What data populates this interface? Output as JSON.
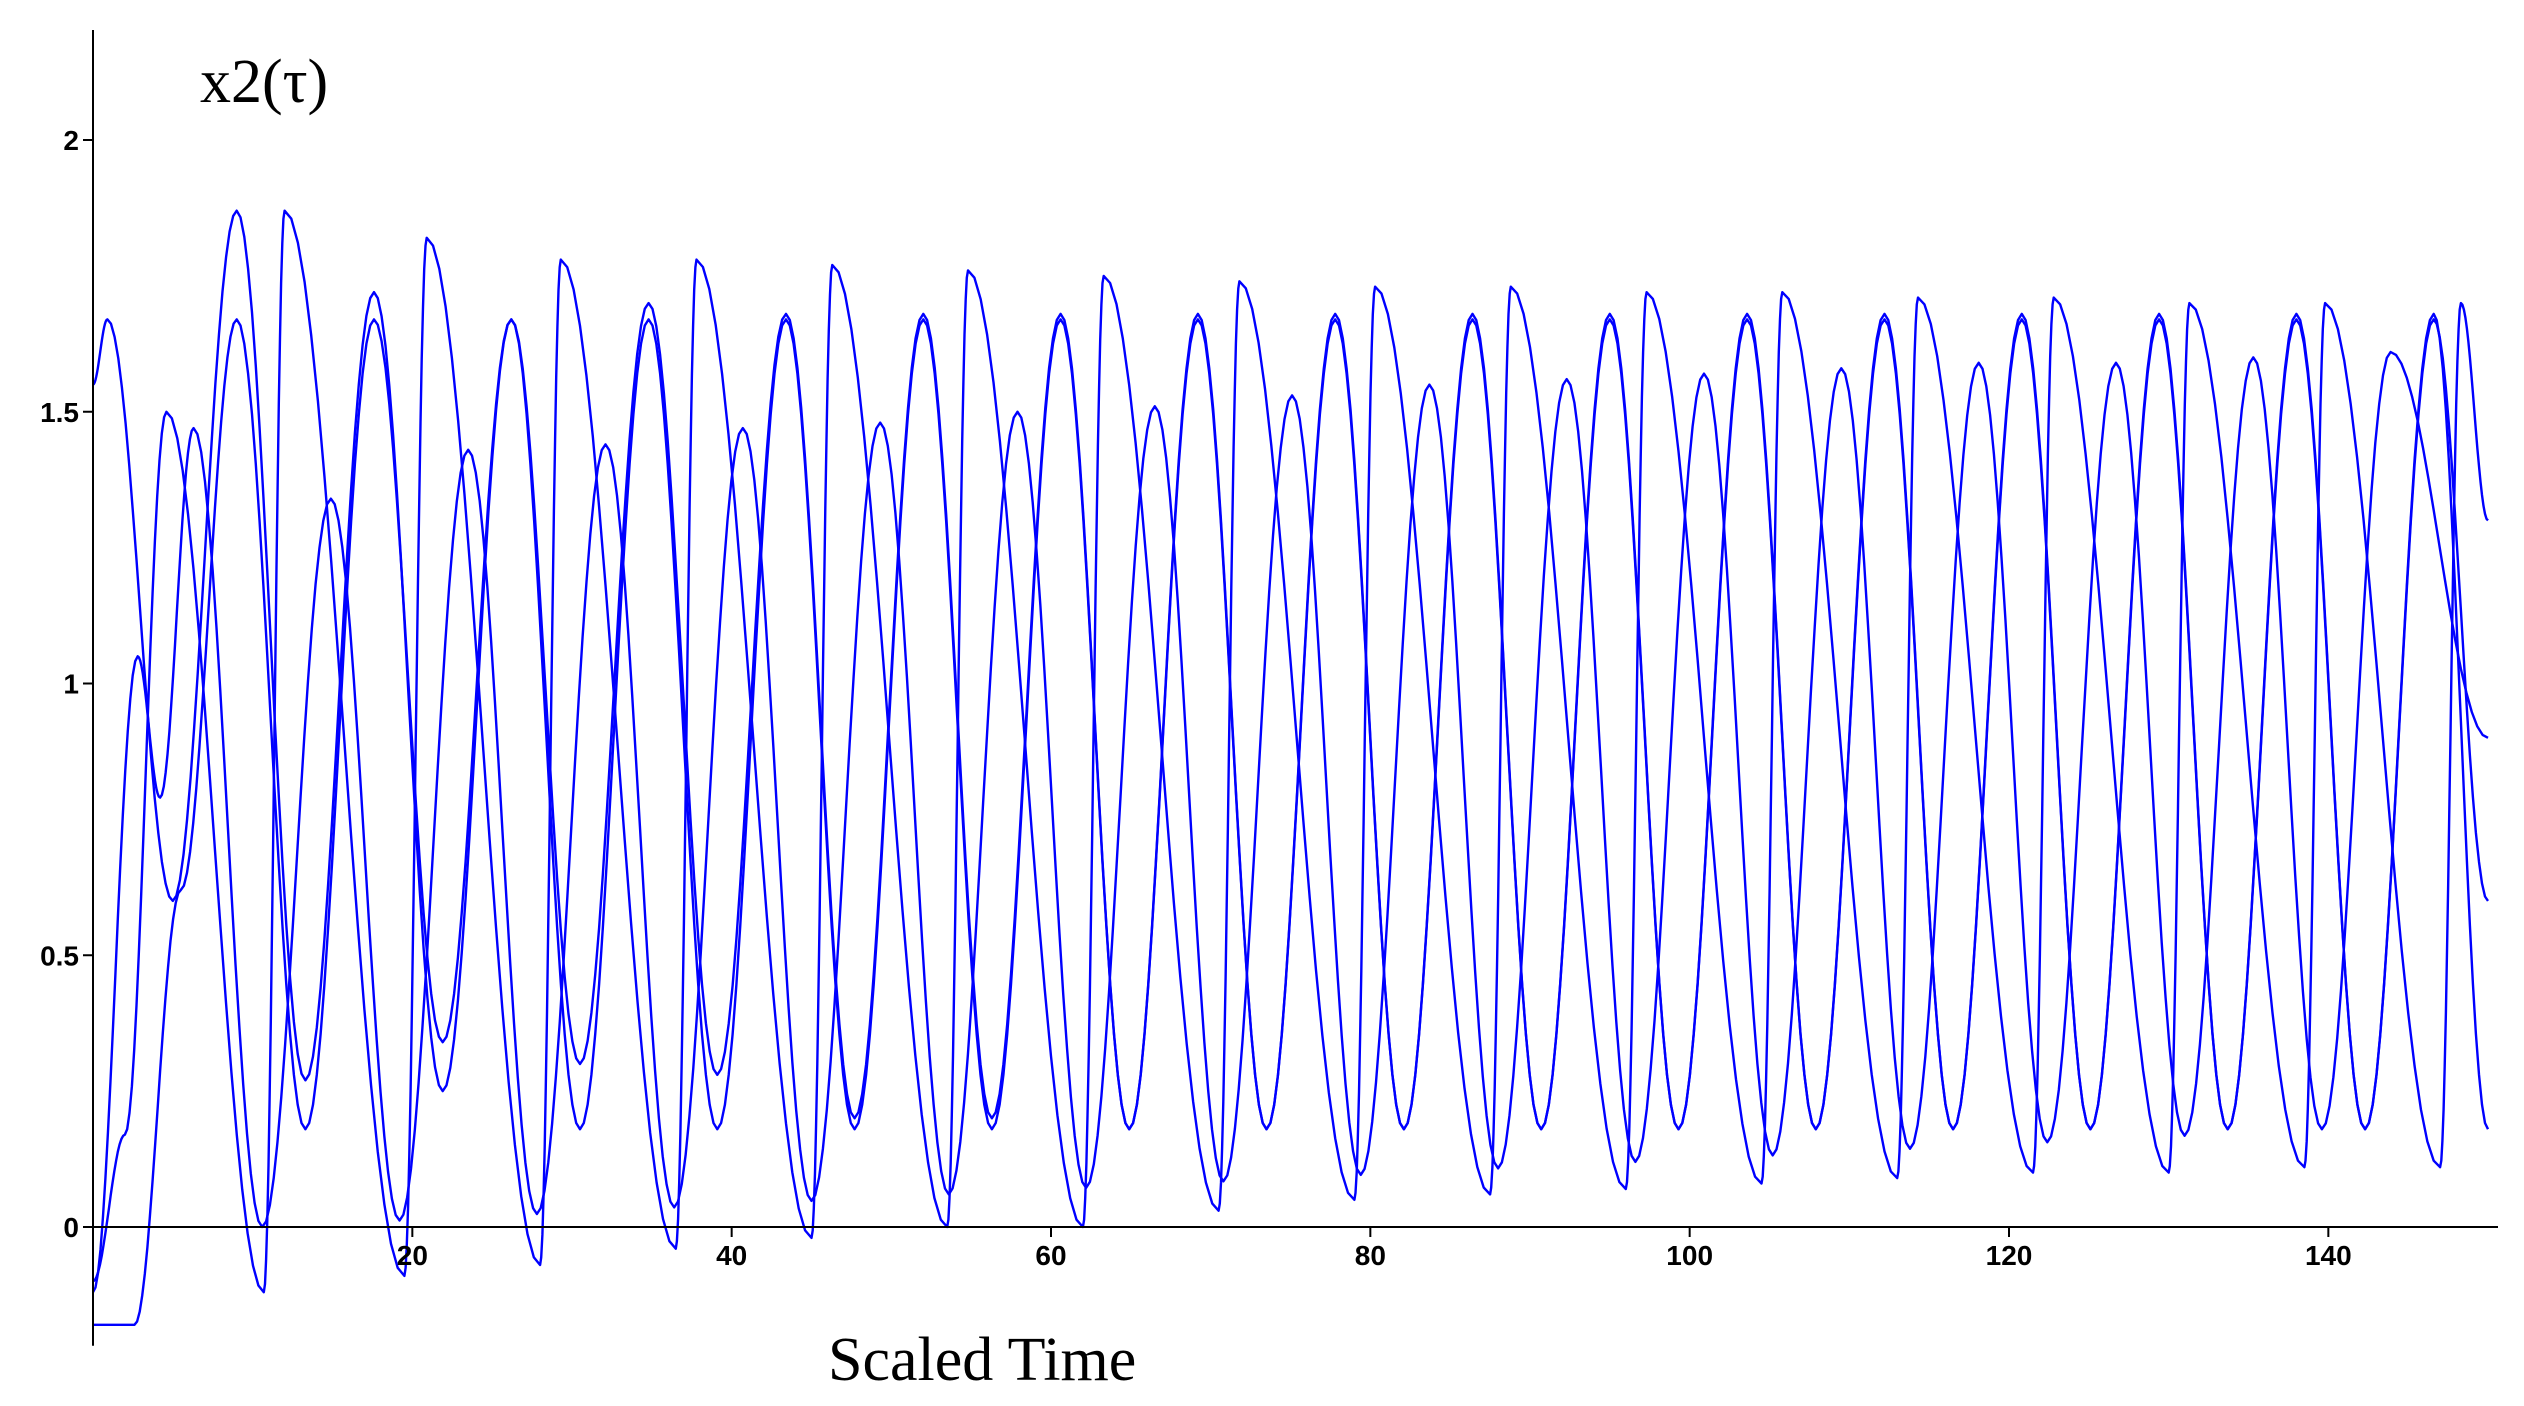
{
  "chart_data": {
    "type": "line",
    "ylabel": "x2(τ)",
    "xlabel": "Scaled Time",
    "title": "",
    "xlim": [
      0,
      150
    ],
    "ylim": [
      -0.2,
      2.2
    ],
    "x_ticks": [
      20,
      40,
      60,
      80,
      100,
      120,
      140
    ],
    "y_ticks": [
      0,
      0.5,
      1,
      1.5,
      2
    ],
    "x_tick_labels": [
      "20",
      "40",
      "60",
      "80",
      "100",
      "120",
      "140"
    ],
    "y_tick_labels": [
      "0",
      "0.5",
      "1",
      "1.5",
      "2"
    ],
    "grid": false,
    "legend": "none",
    "line_color": "#0000ff",
    "series": [
      {
        "period": 8.6,
        "start": [
          0,
          1.55
        ],
        "peaks": [
          [
            0.9,
            1.67
          ],
          [
            9.0,
            1.87
          ],
          [
            17.6,
            1.72
          ],
          [
            26.2,
            1.67
          ],
          [
            34.8,
            1.7
          ],
          [
            43.4,
            1.68
          ],
          [
            52.0,
            1.68
          ],
          [
            60.6,
            1.68
          ],
          [
            69.2,
            1.68
          ],
          [
            77.8,
            1.68
          ],
          [
            86.4,
            1.68
          ],
          [
            95.0,
            1.68
          ],
          [
            103.6,
            1.68
          ],
          [
            112.2,
            1.68
          ],
          [
            120.8,
            1.68
          ],
          [
            129.4,
            1.68
          ],
          [
            138.0,
            1.68
          ],
          [
            146.6,
            1.68
          ]
        ],
        "troughs": [
          [
            5.0,
            0.6
          ],
          [
            13.3,
            0.27
          ],
          [
            21.9,
            0.25
          ],
          [
            30.5,
            0.3
          ],
          [
            39.1,
            0.28
          ],
          [
            47.7,
            0.2
          ],
          [
            56.3,
            0.2
          ],
          [
            64.9,
            0.18
          ],
          [
            73.5,
            0.18
          ],
          [
            82.1,
            0.18
          ],
          [
            90.7,
            0.18
          ],
          [
            99.3,
            0.18
          ],
          [
            107.9,
            0.18
          ],
          [
            116.5,
            0.18
          ],
          [
            125.1,
            0.18
          ],
          [
            133.7,
            0.18
          ],
          [
            142.3,
            0.18
          ]
        ],
        "end": [
          150,
          0.18
        ]
      },
      {
        "period": 8.6,
        "start": [
          0,
          -0.1
        ],
        "peaks": [
          [
            4.6,
            1.5
          ],
          [
            12.0,
            1.87
          ],
          [
            20.9,
            1.82
          ],
          [
            29.3,
            1.78
          ],
          [
            37.8,
            1.78
          ],
          [
            46.3,
            1.77
          ],
          [
            54.8,
            1.76
          ],
          [
            63.3,
            1.75
          ],
          [
            71.8,
            1.74
          ],
          [
            80.3,
            1.73
          ],
          [
            88.8,
            1.73
          ],
          [
            97.3,
            1.72
          ],
          [
            105.8,
            1.72
          ],
          [
            114.3,
            1.71
          ],
          [
            122.8,
            1.71
          ],
          [
            131.3,
            1.7
          ],
          [
            139.8,
            1.7
          ],
          [
            148.3,
            1.7
          ]
        ],
        "troughs": [
          [
            2.0,
            0.17
          ],
          [
            10.7,
            -0.12
          ],
          [
            19.5,
            -0.09
          ],
          [
            28.0,
            -0.07
          ],
          [
            36.5,
            -0.04
          ],
          [
            45.0,
            -0.02
          ],
          [
            53.5,
            0.0
          ],
          [
            62.0,
            0.0
          ],
          [
            70.5,
            0.03
          ],
          [
            79.0,
            0.05
          ],
          [
            87.5,
            0.06
          ],
          [
            96.0,
            0.07
          ],
          [
            104.5,
            0.08
          ],
          [
            113.0,
            0.09
          ],
          [
            121.5,
            0.1
          ],
          [
            130.0,
            0.1
          ],
          [
            138.5,
            0.11
          ],
          [
            147.0,
            0.11
          ]
        ],
        "end": [
          150,
          1.3
        ]
      },
      {
        "period": 8.6,
        "start": [
          0,
          -0.12
        ],
        "peaks": [
          [
            6.3,
            1.47
          ],
          [
            14.9,
            1.34
          ],
          [
            23.5,
            1.43
          ],
          [
            32.1,
            1.44
          ],
          [
            40.7,
            1.47
          ],
          [
            49.3,
            1.48
          ],
          [
            57.9,
            1.5
          ],
          [
            66.5,
            1.51
          ],
          [
            75.1,
            1.53
          ],
          [
            83.7,
            1.55
          ],
          [
            92.3,
            1.56
          ],
          [
            100.9,
            1.57
          ],
          [
            109.5,
            1.58
          ],
          [
            118.1,
            1.59
          ],
          [
            126.7,
            1.59
          ],
          [
            135.3,
            1.6
          ],
          [
            143.9,
            1.61
          ]
        ],
        "troughs": [
          [
            2.8,
            1.05
          ],
          [
            4.2,
            0.79
          ]
        ],
        "between_troughs": 0.0,
        "end": [
          150,
          0.9
        ]
      },
      {
        "period": 8.6,
        "start": [
          0,
          -0.18
        ],
        "peaks": [
          [
            9.0,
            1.67
          ],
          [
            17.6,
            1.67
          ],
          [
            26.2,
            1.67
          ],
          [
            34.8,
            1.67
          ],
          [
            43.4,
            1.67
          ],
          [
            52.0,
            1.67
          ],
          [
            60.6,
            1.67
          ],
          [
            69.2,
            1.67
          ],
          [
            77.8,
            1.67
          ],
          [
            86.4,
            1.67
          ],
          [
            95.0,
            1.67
          ],
          [
            103.6,
            1.67
          ],
          [
            112.2,
            1.67
          ],
          [
            120.8,
            1.67
          ],
          [
            129.4,
            1.67
          ],
          [
            138.0,
            1.67
          ],
          [
            146.6,
            1.67
          ]
        ],
        "troughs": [
          [
            2.6,
            -0.18
          ],
          [
            5.5,
            0.62
          ],
          [
            13.3,
            0.18
          ],
          [
            21.9,
            0.34
          ],
          [
            30.5,
            0.18
          ],
          [
            39.1,
            0.18
          ],
          [
            47.7,
            0.18
          ],
          [
            56.3,
            0.18
          ],
          [
            64.9,
            0.18
          ],
          [
            73.5,
            0.18
          ],
          [
            82.1,
            0.18
          ],
          [
            90.7,
            0.18
          ],
          [
            99.3,
            0.18
          ],
          [
            107.9,
            0.18
          ],
          [
            116.5,
            0.18
          ],
          [
            125.1,
            0.18
          ],
          [
            133.7,
            0.18
          ],
          [
            142.3,
            0.18
          ]
        ],
        "end": [
          150,
          0.6
        ]
      }
    ]
  }
}
